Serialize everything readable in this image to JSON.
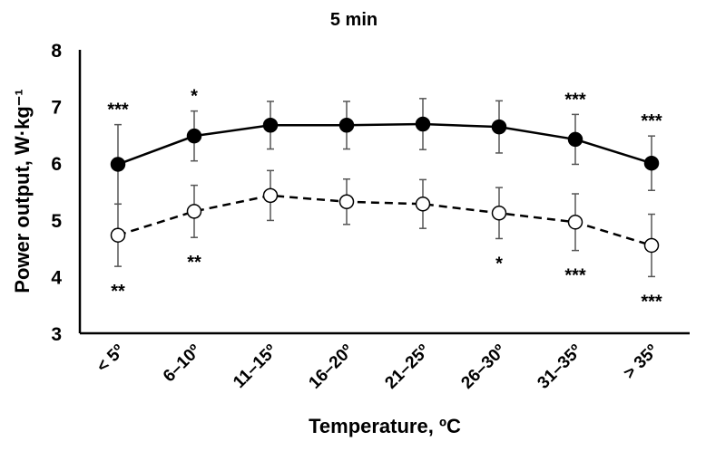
{
  "chart_data": {
    "type": "line",
    "title": "5 min",
    "xlabel": "Temperature, ºC",
    "ylabel": "Power output, W·kg⁻¹",
    "ylim": [
      3,
      8
    ],
    "yticks": [
      "3",
      "4",
      "5",
      "6",
      "7",
      "8"
    ],
    "grid": false,
    "categories": [
      "< 5º",
      "6–10º",
      "11–15º",
      "16–20º",
      "21–25º",
      "26–30º",
      "31–35º",
      "> 35º"
    ],
    "series": [
      {
        "marker": "filled-circle",
        "line": "solid",
        "color": "#000000",
        "values": [
          5.98,
          6.48,
          6.67,
          6.67,
          6.69,
          6.64,
          6.42,
          6.0
        ],
        "error": [
          0.7,
          0.44,
          0.42,
          0.42,
          0.45,
          0.46,
          0.44,
          0.48
        ],
        "annotations": [
          "***",
          "*",
          "",
          "",
          "",
          "",
          "***",
          "***"
        ]
      },
      {
        "marker": "open-circle",
        "line": "dashed",
        "color": "#000000",
        "values": [
          4.73,
          5.15,
          5.43,
          5.32,
          5.28,
          5.12,
          4.96,
          4.55
        ],
        "error": [
          0.55,
          0.46,
          0.44,
          0.4,
          0.43,
          0.45,
          0.5,
          0.55
        ],
        "annotations": [
          "**",
          "**",
          "",
          "",
          "",
          "*",
          "***",
          "***"
        ]
      }
    ],
    "errorbar_color": "#555555"
  }
}
